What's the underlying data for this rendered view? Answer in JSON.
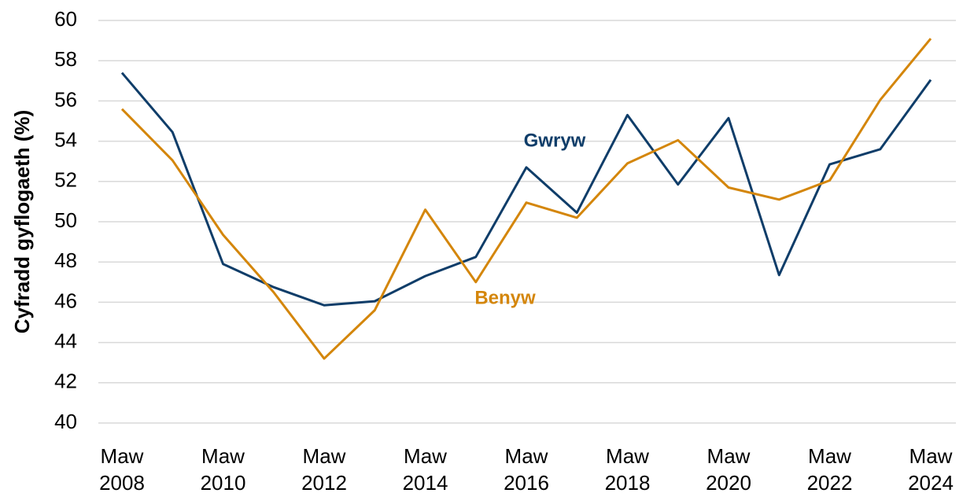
{
  "chart_data": {
    "type": "line",
    "y_label": "Cyfradd gyflogaeth (%)",
    "categories": [
      "Maw 2008",
      null,
      "Maw 2010",
      null,
      "Maw 2012",
      null,
      "Maw 2014",
      null,
      "Maw 2016",
      null,
      "Maw 2018",
      null,
      "Maw 2020",
      null,
      "Maw 2022",
      null,
      "Maw 2024"
    ],
    "series": [
      {
        "name": "Gwryw",
        "color": "#0f3d69",
        "values": [
          57.4,
          54.45,
          47.9,
          46.75,
          45.85,
          46.05,
          47.3,
          48.25,
          52.7,
          50.45,
          55.3,
          51.85,
          55.15,
          47.35,
          52.85,
          53.6,
          57.05
        ]
      },
      {
        "name": "Benyw",
        "color": "#d4860b",
        "values": [
          55.6,
          53.05,
          49.35,
          46.5,
          43.2,
          45.6,
          50.6,
          47.0,
          50.95,
          50.2,
          52.9,
          54.05,
          51.7,
          51.1,
          52.05,
          56.05,
          59.1
        ]
      }
    ],
    "ylim": [
      40,
      60
    ],
    "yticks": [
      40,
      42,
      44,
      46,
      48,
      50,
      52,
      54,
      56,
      58,
      60
    ],
    "grid": true
  }
}
